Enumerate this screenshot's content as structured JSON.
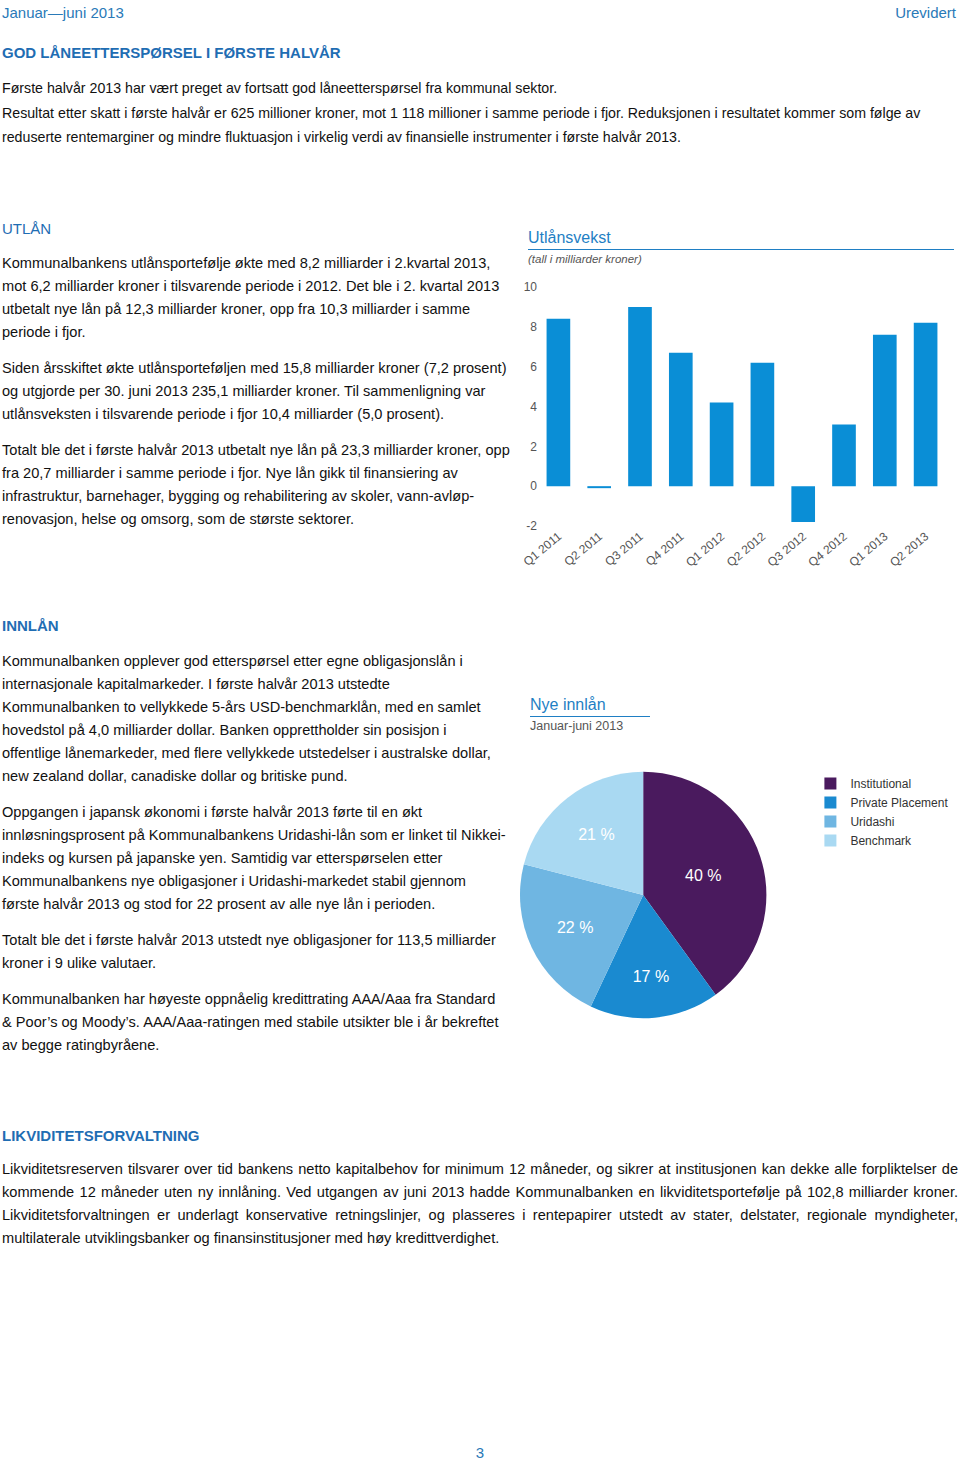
{
  "header": {
    "left": "Januar—juni 2013",
    "right": "Urevidert"
  },
  "title": "GOD LÅNEETTERSPØRSEL I FØRSTE HALVÅR",
  "intro": [
    "Første halvår 2013 har vært preget av fortsatt god låneetterspørsel fra kommunal sektor.",
    "Resultat etter skatt i første halvår er 625 millioner kroner, mot 1 118 millioner i samme periode i fjor. Reduksjonen i resultatet kommer som følge av reduserte rentemarginer og mindre fluktuasjon i virkelig verdi av finansielle instrumenter i første halvår 2013."
  ],
  "sections": [
    {
      "heading": "UTLÅN",
      "paragraphs": [
        "Kommunalbankens utlånsportefølje økte med 8,2 milliarder i 2.kvartal 2013, mot 6,2 milliarder kroner i tilsvarende periode i 2012. Det ble i 2. kvartal 2013 utbetalt nye lån på 12,3 milliarder kroner, opp fra 10,3 milliarder i samme periode i fjor.",
        "Siden årsskiftet økte utlånsporteføljen med 15,8 milliarder kroner (7,2 prosent) og utgjorde per 30. juni 2013 235,1 milliarder kroner. Til sammenligning var utlånsveksten i tilsvarende periode i fjor 10,4 milliarder (5,0 prosent).",
        "Totalt ble det i første halvår 2013 utbetalt nye lån på 23,3 milliarder kroner, opp fra 20,7 milliarder i samme periode i fjor. Nye lån gikk til finansiering av infrastruktur, barnehager, bygging og rehabilitering av skoler, vann-avløp-renovasjon, helse og omsorg, som de største sektorer."
      ]
    },
    {
      "heading": "INNLÅN",
      "paragraphs": [
        "Kommunalbanken opplever god etterspørsel etter egne obligasjonslån i internasjonale kapitalmarkeder. I første halvår 2013 utstedte Kommunalbanken to vellykkede 5-års USD-benchmarklån, med en samlet hovedstol på 4,0 milliarder dollar. Banken opprettholder sin posisjon i offentlige lånemarkeder, med flere vellykkede utstedelser i australske dollar, new zealand dollar, canadiske dollar og britiske pund.",
        "Oppgangen i japansk økonomi i første halvår 2013 førte til en økt innløsningsprosent på Kommunalbankens Uridashi-lån som er linket til Nikkei-indeks og kursen på japanske yen. Samtidig var etterspørselen etter Kommunalbankens nye obligasjoner i Uridashi-markedet stabil gjennom første halvår 2013 og stod for 22 prosent av alle nye lån i perioden.",
        "Totalt ble det i første halvår 2013 utstedt nye obligasjoner for 113,5 milliarder kroner i 9 ulike valutaer.",
        "Kommunalbanken har høyeste oppnåelig kredittrating AAA/Aaa fra Standard & Poor’s og Moody’s. AAA/Aaa-ratingen med stabile utsikter ble i år bekreftet av begge ratingbyråene."
      ]
    },
    {
      "heading": "LIKVIDITETSFORVALTNING",
      "paragraphs": [
        "Likviditetsreserven tilsvarer over tid bankens netto kapitalbehov for minimum 12 måneder, og sikrer at institusjonen kan dekke alle forpliktelser de kommende 12 måneder uten ny innlåning. Ved utgangen av juni 2013 hadde Kommunalbanken en likviditetsportefølje på 102,8 milliarder kroner. Likviditetsforvaltningen er underlagt konservative retningslinjer, og plasseres i rentepapirer utstedt av stater, delstater, regionale myndigheter, multilaterale utviklingsbanker og finansinstitusjoner med høy kredittverdighet."
      ]
    }
  ],
  "chart_data": [
    {
      "type": "bar",
      "title": "Utlånsvekst",
      "subtitle": "(tall i milliarder kroner)",
      "categories": [
        "Q1 2011",
        "Q2 2011",
        "Q3 2011",
        "Q4 2011",
        "Q1 2012",
        "Q2 2012",
        "Q3 2012",
        "Q4 2012",
        "Q1 2013",
        "Q2 2013"
      ],
      "values": [
        8.4,
        -0.1,
        9.0,
        6.7,
        4.2,
        6.2,
        -1.8,
        3.1,
        7.6,
        8.2
      ],
      "color": "#0a8ed6",
      "ylim": [
        -2,
        10
      ],
      "yticks": [
        -2,
        0,
        2,
        4,
        6,
        8,
        10
      ],
      "grid": false
    },
    {
      "type": "pie",
      "title": "Nye innlån",
      "subtitle": "Januar-juni 2013",
      "categories": [
        "Institutional",
        "Private Placement",
        "Uridashi",
        "Benchmark"
      ],
      "values": [
        40,
        17,
        22,
        21
      ],
      "value_labels": [
        "40 %",
        "17 %",
        "22 %",
        "21 %"
      ],
      "colors": [
        "#4a1a5e",
        "#1a8ad0",
        "#6fb6e2",
        "#a9d9f2"
      ],
      "data_labels": true,
      "legend": "right"
    }
  ],
  "footer": {
    "page": "3"
  }
}
